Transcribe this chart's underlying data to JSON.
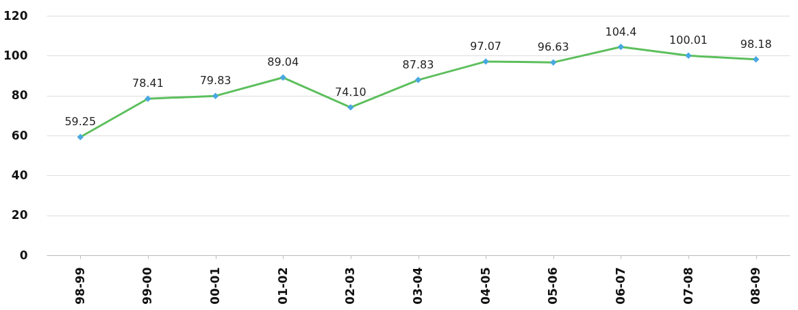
{
  "chart_data": {
    "type": "line",
    "categories": [
      "98-99",
      "99-00",
      "00-01",
      "01-02",
      "02-03",
      "03-04",
      "04-05",
      "05-06",
      "06-07",
      "07-08",
      "08-09"
    ],
    "series": [
      {
        "color": "#5cbf5c",
        "values": [
          59.25,
          78.41,
          79.83,
          89.04,
          74.1,
          87.83,
          97.07,
          96.63,
          104.4,
          100.01,
          98.18
        ]
      }
    ],
    "value_labels": [
      "59.25",
      "78.41",
      "79.83",
      "89.04",
      "74.10",
      "87.83",
      "97.07",
      "96.63",
      "104.4",
      "100.01",
      "98.18"
    ],
    "ylim": [
      0,
      120
    ],
    "yticks": [
      0,
      20,
      40,
      60,
      80,
      100,
      120
    ],
    "grid": "y",
    "marker": "diamond",
    "line_style": "solid"
  }
}
